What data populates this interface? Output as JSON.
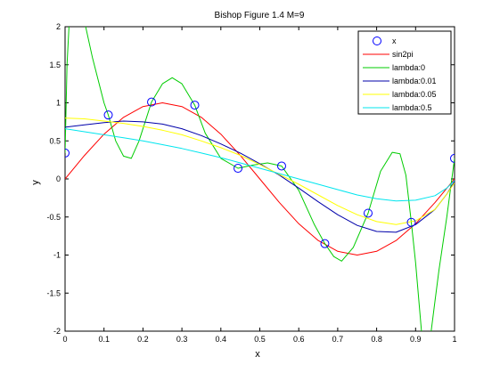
{
  "chart_data": {
    "type": "line",
    "title": "Bishop Figure 1.4 M=9",
    "xlabel": "x",
    "ylabel": "y",
    "xlim": [
      0,
      1
    ],
    "ylim": [
      -2,
      2
    ],
    "xticks": [
      "0",
      "0.1",
      "0.2",
      "0.3",
      "0.4",
      "0.5",
      "0.6",
      "0.7",
      "0.8",
      "0.9",
      "1"
    ],
    "yticks": [
      "-2",
      "-1.5",
      "-1",
      "-0.5",
      "0",
      "0.5",
      "1",
      "1.5",
      "2"
    ],
    "grid": false,
    "legend_position": "top-right",
    "points": {
      "name": "x",
      "color": "#0000ff",
      "x": [
        0,
        0.111,
        0.222,
        0.333,
        0.444,
        0.556,
        0.667,
        0.778,
        0.889,
        1.0
      ],
      "y": [
        0.34,
        0.84,
        1.01,
        0.97,
        0.14,
        0.17,
        -0.85,
        -0.45,
        -0.57,
        0.27
      ]
    },
    "series": [
      {
        "name": "sin2pi",
        "color": "#ff0000",
        "x": [
          0,
          0.05,
          0.1,
          0.15,
          0.2,
          0.25,
          0.3,
          0.35,
          0.4,
          0.45,
          0.5,
          0.55,
          0.6,
          0.65,
          0.7,
          0.75,
          0.8,
          0.85,
          0.9,
          0.95,
          1.0
        ],
        "y": [
          0,
          0.309,
          0.588,
          0.809,
          0.951,
          1.0,
          0.951,
          0.809,
          0.588,
          0.309,
          0,
          -0.309,
          -0.588,
          -0.809,
          -0.951,
          -1.0,
          -0.951,
          -0.809,
          -0.588,
          -0.309,
          0
        ]
      },
      {
        "name": "lambda:0",
        "color": "#00cc00",
        "x": [
          0,
          0.005,
          0.01,
          0.02,
          0.04,
          0.07,
          0.1,
          0.111,
          0.13,
          0.15,
          0.17,
          0.19,
          0.222,
          0.25,
          0.275,
          0.3,
          0.333,
          0.36,
          0.4,
          0.444,
          0.48,
          0.52,
          0.556,
          0.6,
          0.64,
          0.667,
          0.69,
          0.71,
          0.74,
          0.778,
          0.81,
          0.84,
          0.86,
          0.875,
          0.889,
          0.9,
          0.91,
          0.915,
          0.92,
          0.935,
          0.95,
          0.96,
          0.98,
          1.0
        ],
        "y": [
          0.34,
          1.5,
          2.0,
          2.5,
          2.3,
          1.6,
          1.0,
          0.84,
          0.5,
          0.3,
          0.27,
          0.5,
          1.01,
          1.25,
          1.33,
          1.25,
          0.97,
          0.6,
          0.27,
          0.14,
          0.18,
          0.21,
          0.17,
          -0.15,
          -0.6,
          -0.85,
          -1.02,
          -1.08,
          -0.9,
          -0.45,
          0.1,
          0.35,
          0.33,
          0.05,
          -0.57,
          -1.1,
          -1.7,
          -2.0,
          -2.3,
          -2.2,
          -1.6,
          -1.2,
          -0.5,
          0.27
        ]
      },
      {
        "name": "lambda:0.01",
        "color": "#0000aa",
        "x": [
          0,
          0.05,
          0.1,
          0.15,
          0.2,
          0.25,
          0.3,
          0.35,
          0.4,
          0.45,
          0.5,
          0.55,
          0.6,
          0.65,
          0.7,
          0.75,
          0.8,
          0.85,
          0.9,
          0.95,
          0.98,
          1.0
        ],
        "y": [
          0.68,
          0.71,
          0.74,
          0.76,
          0.75,
          0.72,
          0.66,
          0.57,
          0.46,
          0.34,
          0.2,
          0.05,
          -0.12,
          -0.3,
          -0.47,
          -0.61,
          -0.69,
          -0.7,
          -0.6,
          -0.4,
          -0.2,
          -0.03
        ]
      },
      {
        "name": "lambda:0.05",
        "color": "#ffff00",
        "x": [
          0,
          0.05,
          0.1,
          0.15,
          0.2,
          0.25,
          0.3,
          0.35,
          0.4,
          0.45,
          0.5,
          0.55,
          0.6,
          0.65,
          0.7,
          0.75,
          0.8,
          0.85,
          0.9,
          0.95,
          0.98,
          1.0
        ],
        "y": [
          0.8,
          0.79,
          0.76,
          0.73,
          0.69,
          0.64,
          0.58,
          0.5,
          0.41,
          0.31,
          0.19,
          0.06,
          -0.07,
          -0.21,
          -0.35,
          -0.47,
          -0.56,
          -0.6,
          -0.55,
          -0.4,
          -0.2,
          -0.05
        ]
      },
      {
        "name": "lambda:0.5",
        "color": "#00e5ee",
        "x": [
          0,
          0.05,
          0.1,
          0.15,
          0.2,
          0.25,
          0.3,
          0.35,
          0.4,
          0.45,
          0.5,
          0.55,
          0.6,
          0.65,
          0.7,
          0.75,
          0.8,
          0.85,
          0.9,
          0.95,
          0.98,
          1.0
        ],
        "y": [
          0.66,
          0.62,
          0.58,
          0.54,
          0.5,
          0.45,
          0.4,
          0.34,
          0.28,
          0.21,
          0.14,
          0.07,
          0.0,
          -0.07,
          -0.14,
          -0.21,
          -0.26,
          -0.29,
          -0.28,
          -0.22,
          -0.12,
          -0.02
        ]
      }
    ]
  }
}
